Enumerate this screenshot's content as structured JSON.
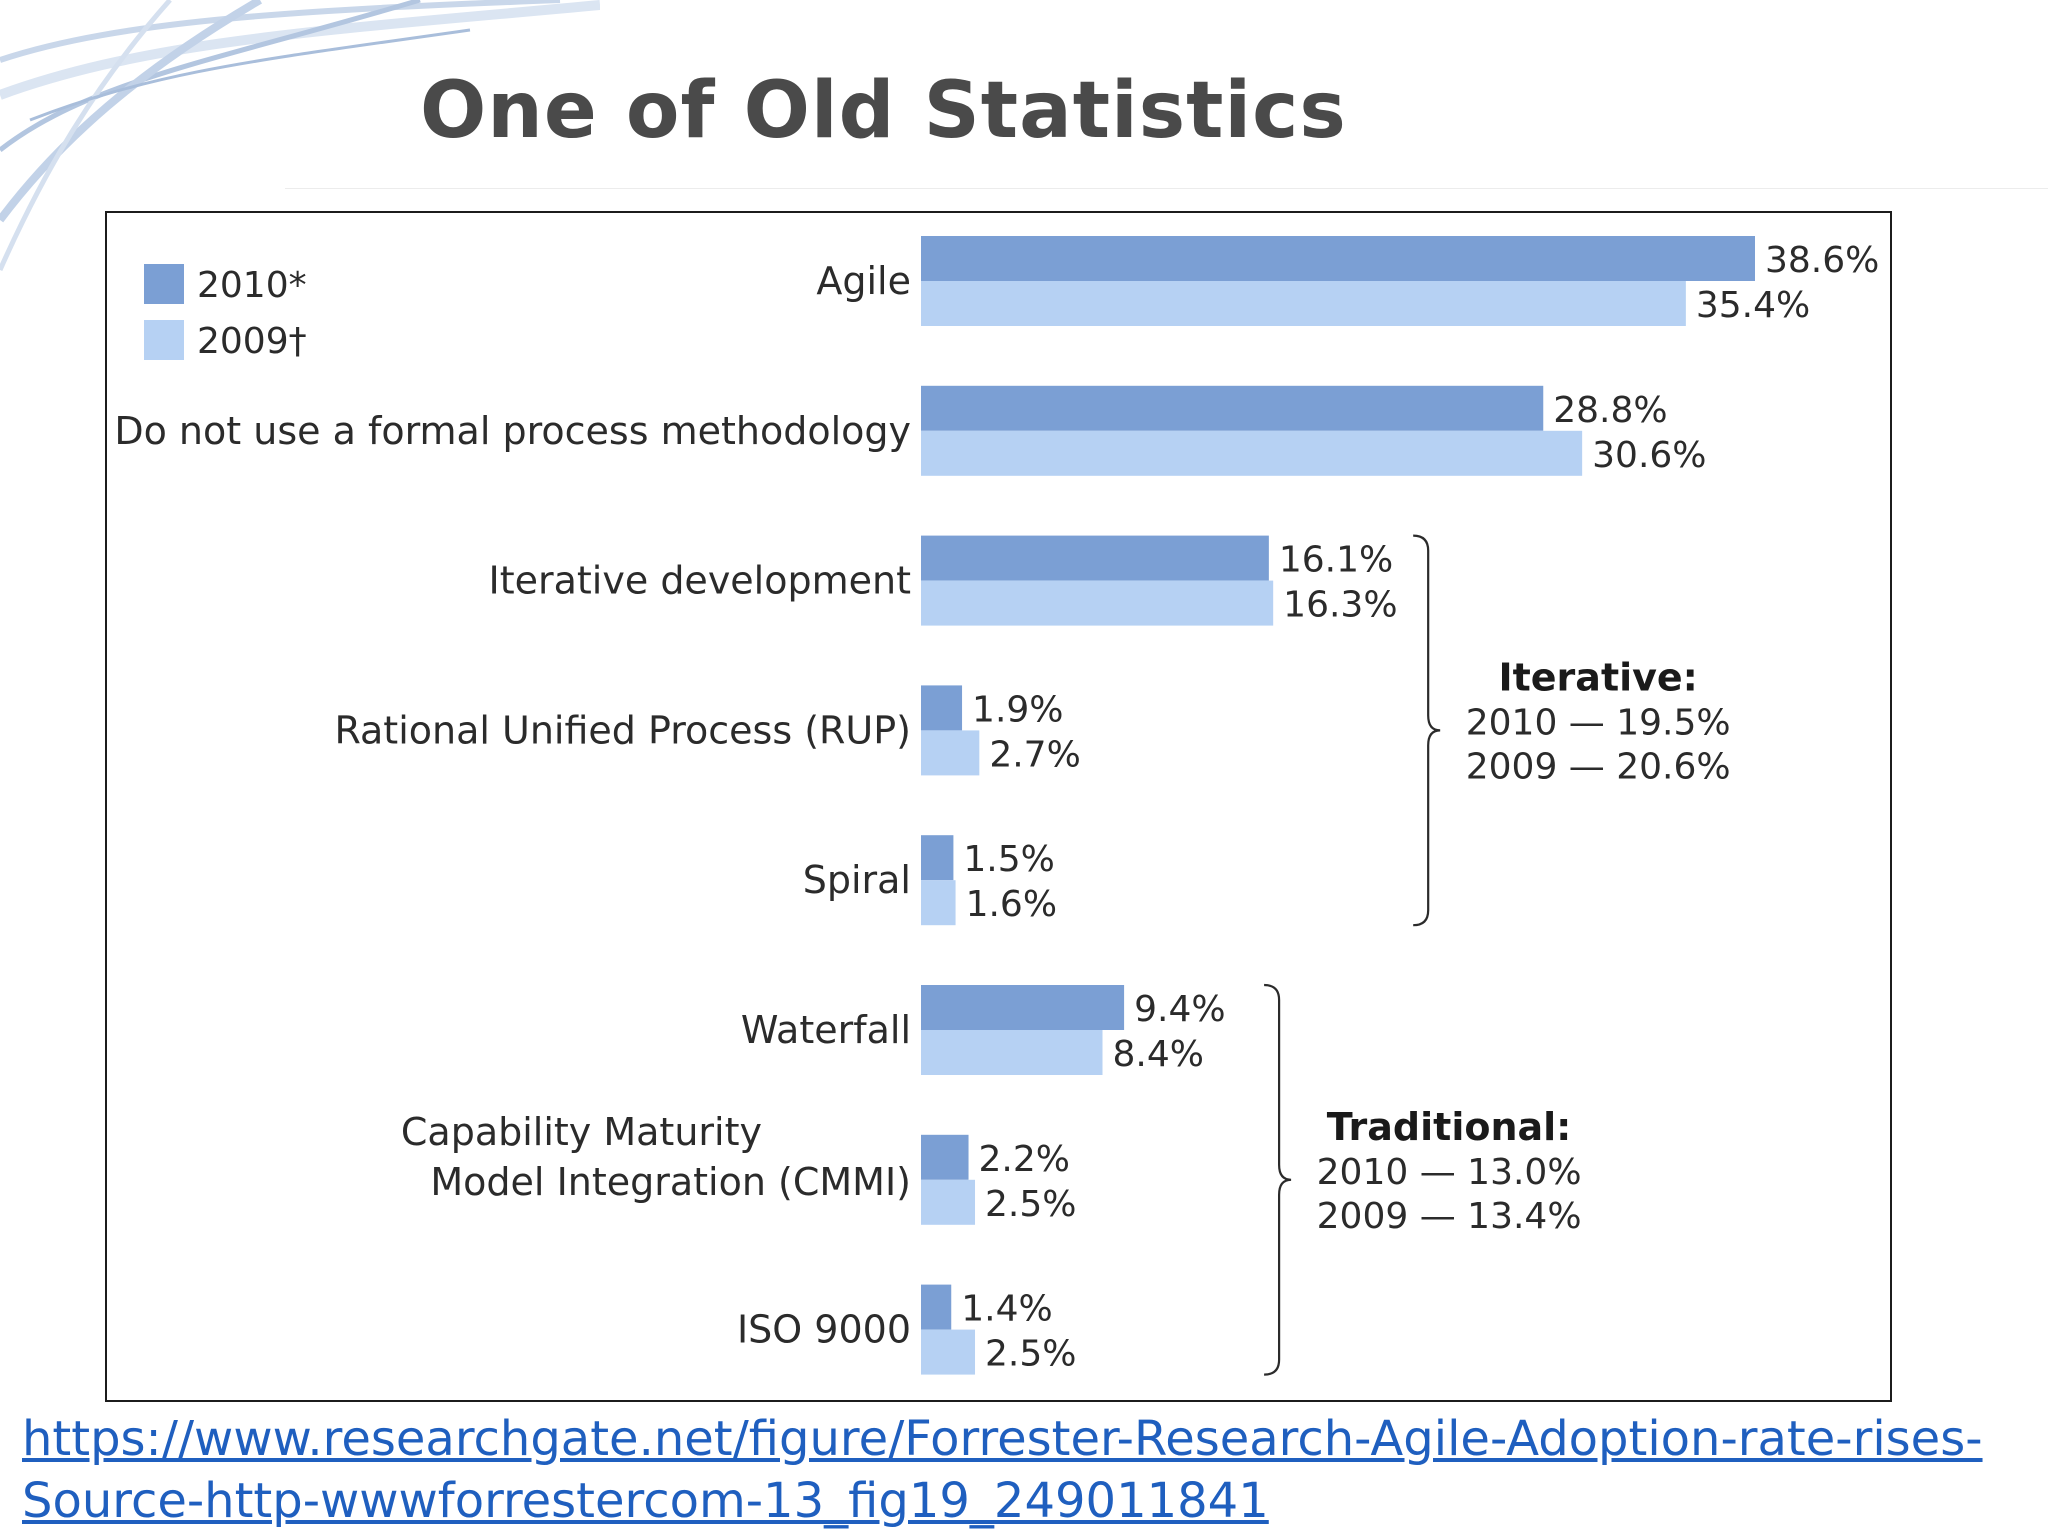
{
  "slide": {
    "title": "One of Old Statistics",
    "source_link": "https://www.researchgate.net/figure/Forrester-Research-Agile-Adoption-rate-rises-Source-http-wwwforrestercom-13_fig19_249011841"
  },
  "chart_data": {
    "type": "bar",
    "orientation": "horizontal",
    "title": "",
    "xlabel": "",
    "ylabel": "",
    "grid": false,
    "legend_position": "top-left",
    "categories": [
      [
        "Agile"
      ],
      [
        "Do not use a formal process methodology"
      ],
      [
        "Iterative development"
      ],
      [
        "Rational Unified Process (RUP)"
      ],
      [
        "Spiral"
      ],
      [
        "Waterfall"
      ],
      [
        "Capability Maturity",
        "Model Integration (CMMI)"
      ],
      [
        "ISO 9000"
      ]
    ],
    "series": [
      {
        "name": "2010*",
        "color": "#7b9fd4",
        "values": [
          38.6,
          28.8,
          16.1,
          1.9,
          1.5,
          9.4,
          2.2,
          1.4
        ],
        "labels": [
          "38.6%",
          "28.8%",
          "16.1%",
          "1.9%",
          "1.5%",
          "9.4%",
          "2.2%",
          "1.4%"
        ]
      },
      {
        "name": "2009†",
        "color": "#b6d1f3",
        "values": [
          35.4,
          30.6,
          16.3,
          2.7,
          1.6,
          8.4,
          2.5,
          2.5
        ],
        "labels": [
          "35.4%",
          "30.6%",
          "16.3%",
          "2.7%",
          "1.6%",
          "8.4%",
          "2.5%",
          "2.5%"
        ]
      }
    ],
    "xlim": [
      0,
      38.6
    ],
    "groups": [
      {
        "title": "Iterative:",
        "lines": [
          "2010 — 19.5%",
          "2009 — 20.6%"
        ],
        "categories": [
          2,
          4
        ]
      },
      {
        "title": "Traditional:",
        "lines": [
          "2010 — 13.0%",
          "2009 — 13.4%"
        ],
        "categories": [
          5,
          7
        ]
      }
    ]
  }
}
